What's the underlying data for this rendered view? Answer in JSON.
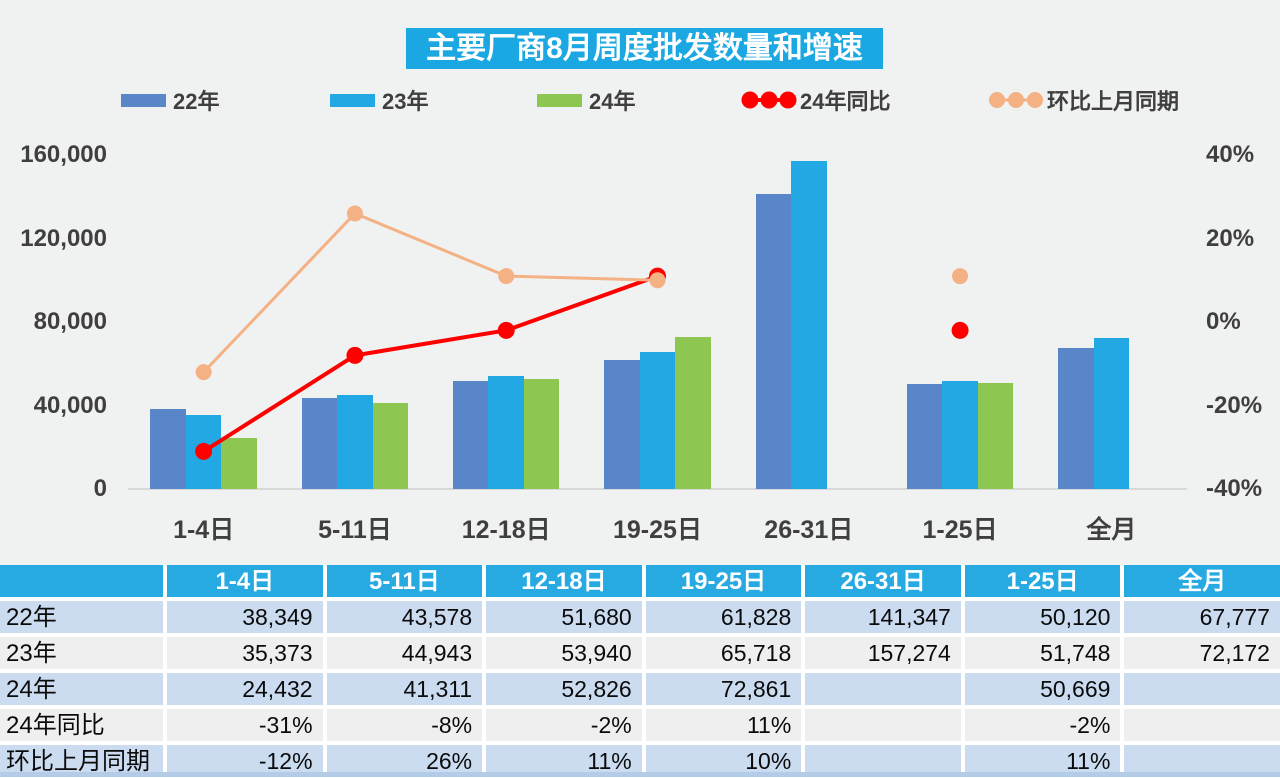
{
  "chart": {
    "title": "主要厂商8月周度批发数量和增速",
    "title_bg": "#1BA7E2",
    "legend": [
      {
        "label": "22年",
        "type": "bar",
        "color": "#5886C9"
      },
      {
        "label": "23年",
        "type": "bar",
        "color": "#22A9E4"
      },
      {
        "label": "24年",
        "type": "bar",
        "color": "#8DC752"
      },
      {
        "label": "24年同比",
        "type": "line",
        "color": "#FE0000"
      },
      {
        "label": "环比上月同期",
        "type": "line",
        "color": "#F4B183"
      }
    ]
  },
  "chart_data": {
    "type": "bar+line",
    "title": "主要厂商8月周度批发数量和增速",
    "categories": [
      "1-4日",
      "5-11日",
      "12-18日",
      "19-25日",
      "26-31日",
      "1-25日",
      "全月"
    ],
    "series": [
      {
        "name": "22年",
        "type": "bar",
        "color": "#5886C9",
        "values": [
          38349,
          43578,
          51680,
          61828,
          141347,
          50120,
          67777
        ]
      },
      {
        "name": "23年",
        "type": "bar",
        "color": "#22A9E4",
        "values": [
          35373,
          44943,
          53940,
          65718,
          157274,
          51748,
          72172
        ]
      },
      {
        "name": "24年",
        "type": "bar",
        "color": "#8DC752",
        "values": [
          24432,
          41311,
          52826,
          72861,
          null,
          50669,
          null
        ]
      },
      {
        "name": "24年同比",
        "type": "line",
        "color": "#FE0000",
        "axis": "right",
        "values": [
          -31,
          -8,
          -2,
          11,
          null,
          -2,
          null
        ],
        "unit": "%"
      },
      {
        "name": "环比上月同期",
        "type": "line",
        "color": "#F4B183",
        "axis": "right",
        "values": [
          -12,
          26,
          11,
          10,
          null,
          11,
          null
        ],
        "unit": "%"
      }
    ],
    "left_axis": {
      "ticks": [
        "160,000",
        "120,000",
        "80,000",
        "40,000",
        "0"
      ],
      "min": 0,
      "max": 160000
    },
    "right_axis": {
      "ticks": [
        "40%",
        "20%",
        "0%",
        "-20%",
        "-40%"
      ],
      "min": -40,
      "max": 40
    },
    "legend_position": "top",
    "grid": false
  },
  "table": {
    "header": [
      "",
      "1-4日",
      "5-11日",
      "12-18日",
      "19-25日",
      "26-31日",
      "1-25日",
      "全月"
    ],
    "rows": [
      {
        "label": "22年",
        "cells": [
          "38,349",
          "43,578",
          "51,680",
          "61,828",
          "141,347",
          "50,120",
          "67,777"
        ]
      },
      {
        "label": "23年",
        "cells": [
          "35,373",
          "44,943",
          "53,940",
          "65,718",
          "157,274",
          "51,748",
          "72,172"
        ]
      },
      {
        "label": "24年",
        "cells": [
          "24,432",
          "41,311",
          "52,826",
          "72,861",
          "",
          "50,669",
          ""
        ]
      },
      {
        "label": "24年同比",
        "cells": [
          "-31%",
          "-8%",
          "-2%",
          "11%",
          "",
          "-2%",
          ""
        ]
      },
      {
        "label": "环比上月同期",
        "cells": [
          "-12%",
          "26%",
          "11%",
          "10%",
          "",
          "11%",
          ""
        ]
      }
    ],
    "colors": {
      "header_bg": "#27A9E2",
      "row_blue": "#CBDCF0",
      "row_gray": "#EFEFEF"
    }
  }
}
